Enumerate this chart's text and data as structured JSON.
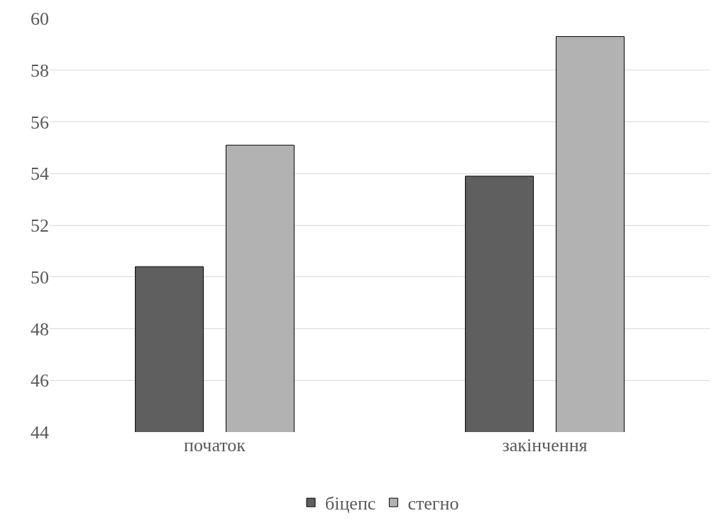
{
  "chart_data": {
    "type": "bar",
    "categories": [
      "початок",
      "закінчення"
    ],
    "series": [
      {
        "name": "біцепс",
        "color": "#5f5f5f",
        "values": [
          50.4,
          53.9
        ]
      },
      {
        "name": "стегно",
        "color": "#b2b2b2",
        "values": [
          55.1,
          59.3
        ]
      }
    ],
    "ylim": [
      44,
      60
    ],
    "yticks": [
      44,
      46,
      48,
      50,
      52,
      54,
      56,
      58,
      60
    ],
    "grid": "y",
    "legend": "bottom"
  }
}
